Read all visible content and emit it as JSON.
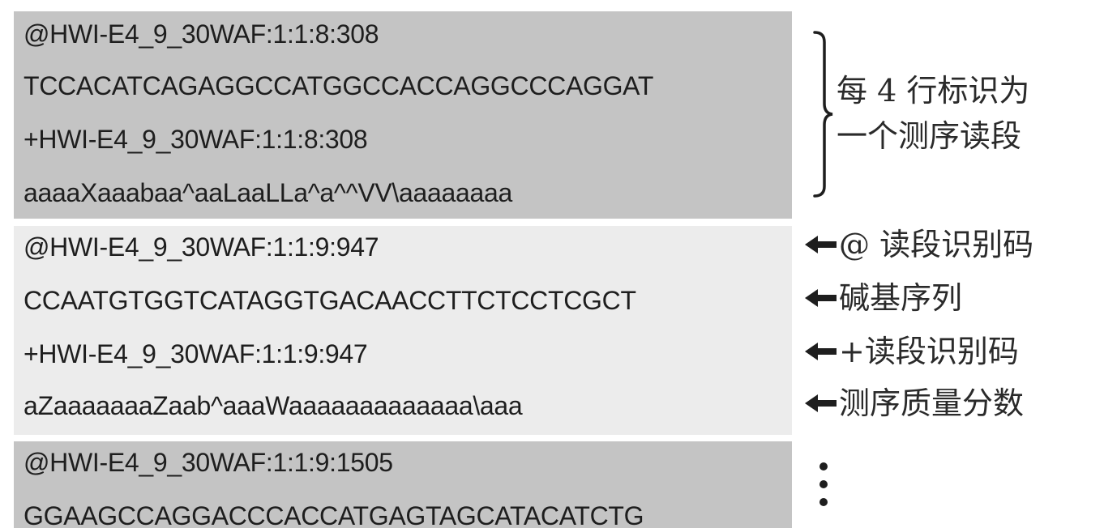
{
  "blocks": [
    {
      "lines": [
        "@HWI-E4_9_30WAF:1:1:8:308",
        "TCCACATCAGAGGCCATGGCCACCAGGCCCAGGAT",
        "+HWI-E4_9_30WAF:1:1:8:308",
        "aaaaXaaabaa^aaLaaLLa^a^^VV\\aaaaaaaa"
      ]
    },
    {
      "lines": [
        "@HWI-E4_9_30WAF:1:1:9:947",
        "CCAATGTGGTCATAGGTGACAACCTTCTCCTCGCT",
        "+HWI-E4_9_30WAF:1:1:9:947",
        "aZaaaaaaaZaab^aaaWaaaaaaaaaaaaa\\aaa"
      ]
    },
    {
      "lines": [
        "@HWI-E4_9_30WAF:1:1:9:1505",
        "GGAAGCCAGGACCCACCATGAGTAGCATACATCTG"
      ]
    }
  ],
  "annotations": {
    "brace_label_line1": "每 4 行标识为",
    "brace_label_line2": "一个测序读段",
    "arrow_labels": [
      "@ 读段识别码",
      "碱基序列",
      "+读段识别码",
      "测序质量分数"
    ]
  },
  "icons": {
    "brace": "right-brace-icon",
    "arrow": "left-arrow-icon",
    "continuation": "vertical-ellipsis-icon"
  },
  "colors": {
    "dark_block": "#c4c4c4",
    "light_block": "#ececec",
    "text": "#1e1e1e"
  }
}
